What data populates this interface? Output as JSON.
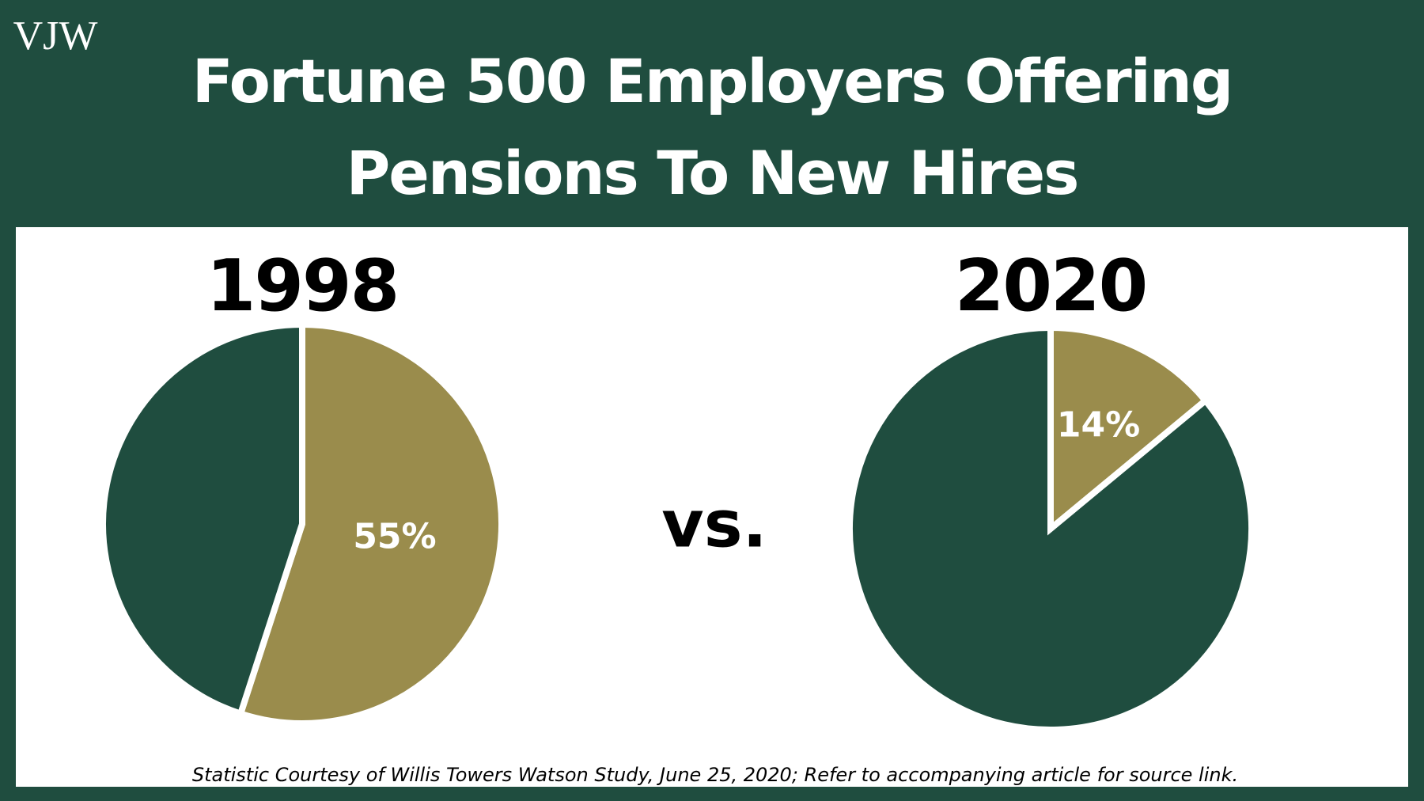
{
  "logo": "VJW",
  "title": [
    "Fortune 500 Employers Offering",
    "Pensions To New Hires"
  ],
  "separator": "vs.",
  "footnote": "Statistic Courtesy of Willis Towers Watson Study, June 25, 2020; Refer to accompanying article for source link.",
  "chart_data": [
    {
      "type": "pie",
      "title": "1998",
      "values": [
        55,
        45
      ],
      "value_labels": [
        "55%",
        null
      ],
      "colors": [
        "#9a8c4c",
        "#1f4d3f"
      ]
    },
    {
      "type": "pie",
      "title": "2020",
      "values": [
        14,
        86
      ],
      "value_labels": [
        "14%",
        null
      ],
      "colors": [
        "#9a8c4c",
        "#1f4d3f"
      ]
    }
  ]
}
